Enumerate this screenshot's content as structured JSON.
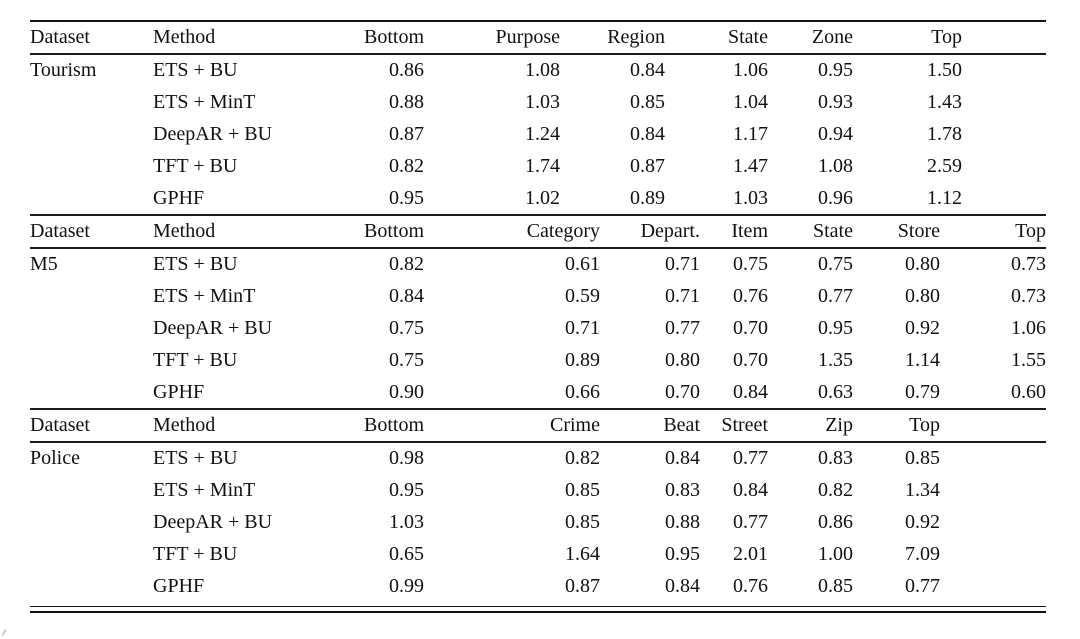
{
  "meta": {
    "content_kind": "paper-results-table",
    "text_color": "#111111",
    "rule_color": "#1c1c1c",
    "background_color": "#ffffff"
  },
  "table": {
    "sections": [
      {
        "dataset": "Tourism",
        "columns": [
          "Dataset",
          "Method",
          "Bottom",
          "Purpose",
          "Region",
          "State",
          "Zone",
          "Top",
          ""
        ],
        "rows": [
          {
            "method": "ETS + BU",
            "values": [
              "0.86",
              "1.08",
              "0.84",
              "1.06",
              "0.95",
              "1.50"
            ],
            "bold": [
              2
            ]
          },
          {
            "method": "ETS + MinT",
            "values": [
              "0.88",
              "1.03",
              "0.85",
              "1.04",
              "0.93",
              "1.43"
            ],
            "bold": [
              4
            ]
          },
          {
            "method": "DeepAR + BU",
            "values": [
              "0.87",
              "1.24",
              "0.84",
              "1.17",
              "0.94",
              "1.78"
            ],
            "bold": [
              2
            ]
          },
          {
            "method": "TFT + BU",
            "values": [
              "0.82",
              "1.74",
              "0.87",
              "1.47",
              "1.08",
              "2.59"
            ],
            "bold": [
              0
            ]
          },
          {
            "method": "GPHF",
            "values": [
              "0.95",
              "1.02",
              "0.89",
              "1.03",
              "0.96",
              "1.12"
            ],
            "bold": [
              1,
              3,
              5
            ]
          }
        ]
      },
      {
        "dataset": "M5",
        "columns": [
          "Dataset",
          "Method",
          "Bottom",
          "Category",
          "Depart.",
          "Item",
          "State",
          "Store",
          "Top"
        ],
        "rows": [
          {
            "method": "ETS + BU",
            "values": [
              "0.82",
              "0.61",
              "0.71",
              "0.75",
              "0.75",
              "0.80",
              "0.73"
            ],
            "bold": []
          },
          {
            "method": "ETS + MinT",
            "values": [
              "0.84",
              "0.59",
              "0.71",
              "0.76",
              "0.77",
              "0.80",
              "0.73"
            ],
            "bold": [
              1,
              4
            ]
          },
          {
            "method": "DeepAR + BU",
            "values": [
              "0.75",
              "0.71",
              "0.77",
              "0.70",
              "0.95",
              "0.92",
              "1.06"
            ],
            "bold": [
              0,
              3
            ]
          },
          {
            "method": "TFT + BU",
            "values": [
              "0.75",
              "0.89",
              "0.80",
              "0.70",
              "1.35",
              "1.14",
              "1.55"
            ],
            "bold": [
              0,
              3
            ]
          },
          {
            "method": "GPHF",
            "values": [
              "0.90",
              "0.66",
              "0.70",
              "0.84",
              "0.63",
              "0.79",
              "0.60"
            ],
            "bold": [
              2,
              5,
              6
            ]
          }
        ]
      },
      {
        "dataset": "Police",
        "columns": [
          "Dataset",
          "Method",
          "Bottom",
          "Crime",
          "Beat",
          "Street",
          "Zip",
          "Top",
          ""
        ],
        "rows": [
          {
            "method": "ETS + BU",
            "values": [
              "0.98",
              "0.82",
              "0.84",
              "0.77",
              "0.83",
              "0.85"
            ],
            "bold": [
              1,
              2
            ]
          },
          {
            "method": "ETS + MinT",
            "values": [
              "0.95",
              "0.85",
              "0.83",
              "0.84",
              "0.82",
              "1.34"
            ],
            "bold": [
              4
            ]
          },
          {
            "method": "DeepAR + BU",
            "values": [
              "1.03",
              "0.85",
              "0.88",
              "0.77",
              "0.86",
              "0.92"
            ],
            "bold": []
          },
          {
            "method": "TFT + BU",
            "values": [
              "0.65",
              "1.64",
              "0.95",
              "2.01",
              "1.00",
              "7.09"
            ],
            "bold": [
              0
            ]
          },
          {
            "method": "GPHF",
            "values": [
              "0.99",
              "0.87",
              "0.84",
              "0.76",
              "0.85",
              "0.77"
            ],
            "bold": [
              2,
              3,
              5
            ]
          }
        ]
      }
    ]
  }
}
